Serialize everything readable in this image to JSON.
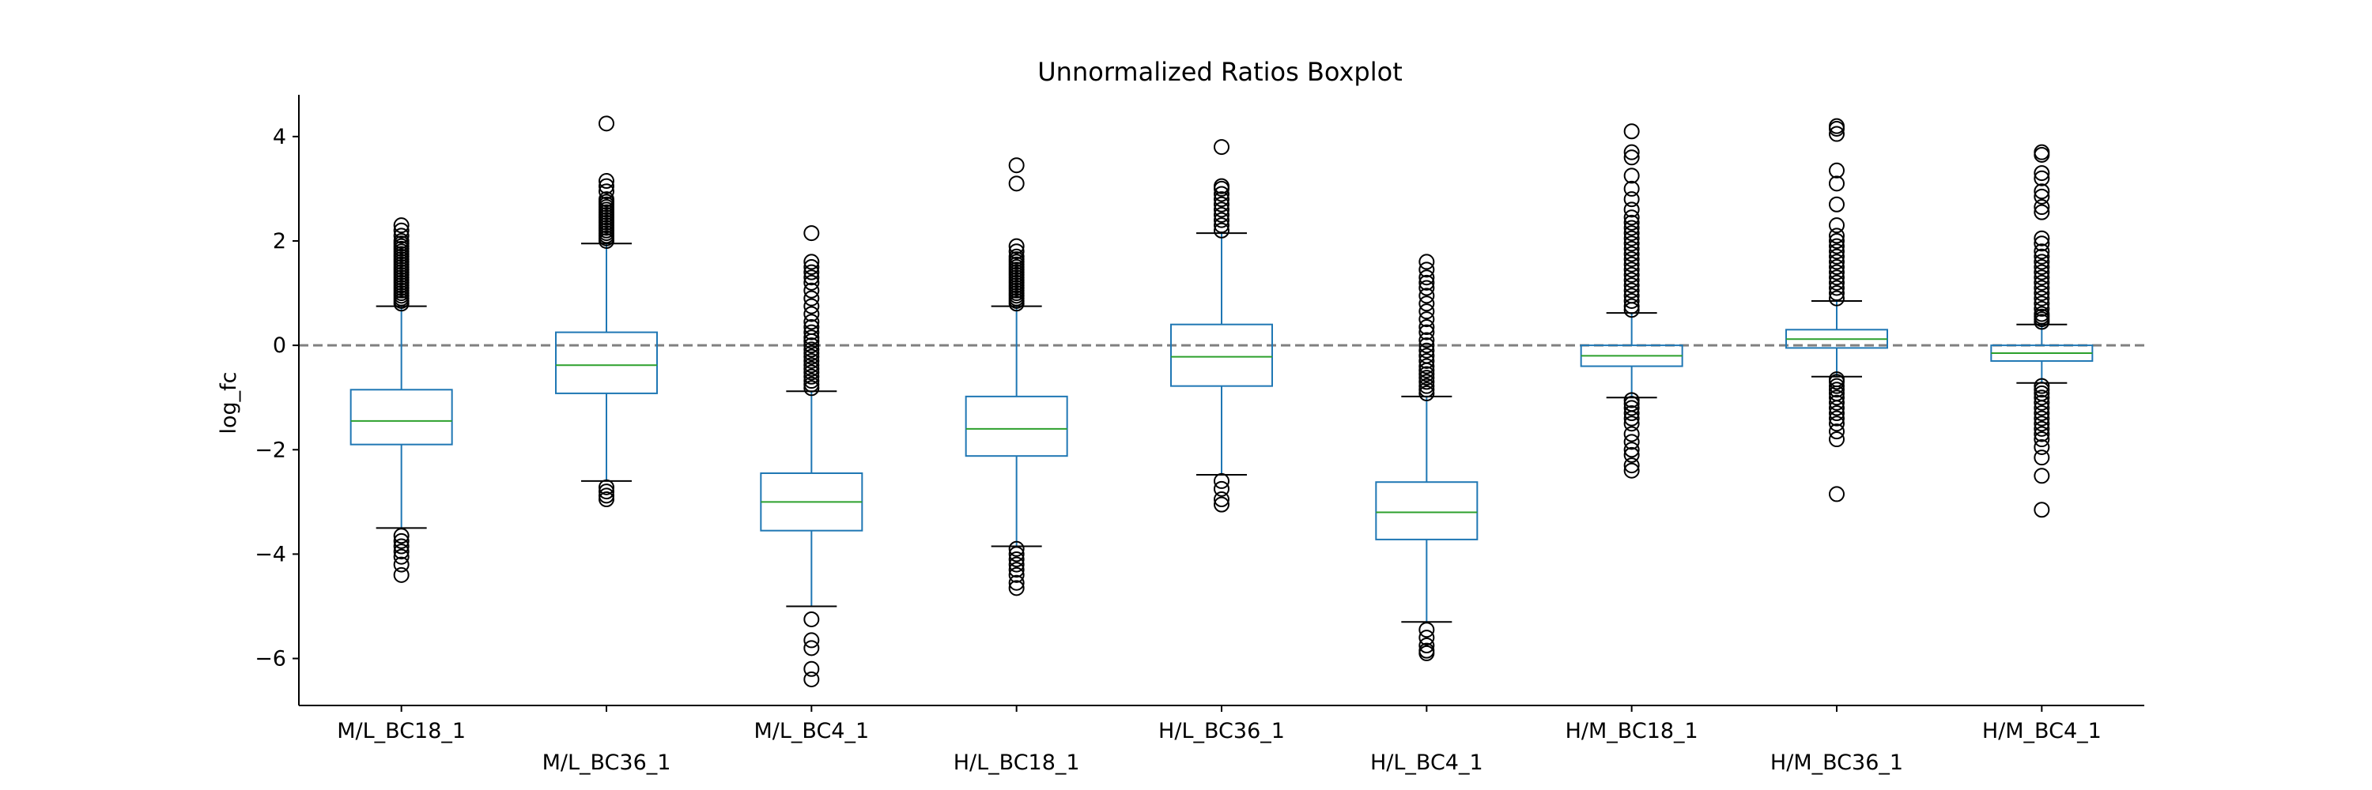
{
  "chart_data": {
    "type": "boxplot",
    "title": "Unnormalized Ratios Boxplot",
    "xlabel": "",
    "ylabel": "log_fc",
    "ylim": [
      -6.9,
      4.8
    ],
    "yticks": [
      -6,
      -4,
      -2,
      0,
      2,
      4
    ],
    "ytick_labels": [
      "−6",
      "−4",
      "−2",
      "0",
      "2",
      "4"
    ],
    "reference_line": {
      "y": 0,
      "style": "dashed",
      "color": "#808080"
    },
    "box_color": "#1f77b4",
    "median_color": "#2ca02c",
    "whisker_color": "#1f77b4",
    "cap_color": "#000000",
    "flier_color": "#000000",
    "grid": false,
    "categories": [
      "M/L_BC18_1",
      "M/L_BC36_1",
      "M/L_BC4_1",
      "H/L_BC18_1",
      "H/L_BC36_1",
      "H/L_BC4_1",
      "H/M_BC18_1",
      "H/M_BC36_1",
      "H/M_BC4_1"
    ],
    "boxes": [
      {
        "label": "M/L_BC18_1",
        "whislo": -3.5,
        "q1": -1.9,
        "med": -1.45,
        "q3": -0.85,
        "whishi": 0.75,
        "fliers": [
          0.8,
          0.85,
          0.9,
          0.95,
          1.0,
          1.05,
          1.1,
          1.15,
          1.2,
          1.25,
          1.3,
          1.35,
          1.4,
          1.45,
          1.5,
          1.55,
          1.6,
          1.65,
          1.7,
          1.75,
          1.8,
          1.85,
          1.9,
          1.95,
          2.0,
          2.1,
          2.2,
          2.3,
          -3.65,
          -3.75,
          -3.85,
          -3.95,
          -4.05,
          -4.2,
          -4.4
        ]
      },
      {
        "label": "M/L_BC36_1",
        "whislo": -2.6,
        "q1": -0.92,
        "med": -0.38,
        "q3": 0.25,
        "whishi": 1.95,
        "fliers": [
          2.0,
          2.05,
          2.1,
          2.15,
          2.2,
          2.25,
          2.3,
          2.35,
          2.4,
          2.45,
          2.5,
          2.55,
          2.6,
          2.65,
          2.7,
          2.75,
          2.8,
          2.95,
          3.05,
          3.15,
          4.25,
          -2.72,
          -2.8,
          -2.88,
          -2.95
        ]
      },
      {
        "label": "M/L_BC4_1",
        "whislo": -5.0,
        "q1": -3.55,
        "med": -3.0,
        "q3": -2.45,
        "whishi": -0.88,
        "fliers": [
          -0.82,
          -0.75,
          -0.68,
          -0.6,
          -0.52,
          -0.45,
          -0.38,
          -0.3,
          -0.22,
          -0.15,
          -0.08,
          0.0,
          0.08,
          0.15,
          0.25,
          0.35,
          0.45,
          0.6,
          0.75,
          0.9,
          1.05,
          1.2,
          1.3,
          1.4,
          1.5,
          1.6,
          2.15,
          -5.25,
          -5.65,
          -5.8,
          -6.2,
          -6.4
        ]
      },
      {
        "label": "H/L_BC18_1",
        "whislo": -3.85,
        "q1": -2.12,
        "med": -1.6,
        "q3": -0.98,
        "whishi": 0.75,
        "fliers": [
          0.8,
          0.85,
          0.9,
          0.95,
          1.0,
          1.05,
          1.1,
          1.15,
          1.2,
          1.25,
          1.3,
          1.35,
          1.4,
          1.45,
          1.5,
          1.55,
          1.6,
          1.65,
          1.7,
          1.8,
          1.9,
          3.1,
          3.45,
          -3.9,
          -4.0,
          -4.1,
          -4.2,
          -4.3,
          -4.4,
          -4.55,
          -4.65
        ]
      },
      {
        "label": "H/L_BC36_1",
        "whislo": -2.48,
        "q1": -0.78,
        "med": -0.22,
        "q3": 0.4,
        "whishi": 2.15,
        "fliers": [
          2.2,
          2.3,
          2.4,
          2.5,
          2.6,
          2.7,
          2.8,
          2.9,
          3.0,
          3.05,
          3.8,
          -2.6,
          -2.75,
          -2.95,
          -3.05
        ]
      },
      {
        "label": "H/L_BC4_1",
        "whislo": -5.3,
        "q1": -3.72,
        "med": -3.2,
        "q3": -2.62,
        "whishi": -0.98,
        "fliers": [
          -0.92,
          -0.85,
          -0.78,
          -0.7,
          -0.62,
          -0.55,
          -0.48,
          -0.4,
          -0.3,
          -0.2,
          -0.1,
          0.0,
          0.1,
          0.25,
          0.35,
          0.5,
          0.65,
          0.8,
          0.95,
          1.1,
          1.2,
          1.3,
          1.45,
          1.6,
          -5.45,
          -5.6,
          -5.75,
          -5.85,
          -5.9
        ]
      },
      {
        "label": "H/M_BC18_1",
        "whislo": -1.0,
        "q1": -0.4,
        "med": -0.2,
        "q3": 0.0,
        "whishi": 0.62,
        "fliers": [
          0.68,
          0.75,
          0.85,
          0.95,
          1.05,
          1.15,
          1.25,
          1.35,
          1.45,
          1.55,
          1.65,
          1.75,
          1.85,
          1.95,
          2.05,
          2.15,
          2.25,
          2.35,
          2.45,
          2.6,
          2.8,
          3.0,
          3.25,
          3.6,
          3.7,
          4.1,
          -1.05,
          -1.12,
          -1.2,
          -1.3,
          -1.4,
          -1.5,
          -1.7,
          -1.85,
          -2.0,
          -2.1,
          -2.3,
          -2.4
        ]
      },
      {
        "label": "H/M_BC36_1",
        "whislo": -0.6,
        "q1": -0.05,
        "med": 0.12,
        "q3": 0.3,
        "whishi": 0.85,
        "fliers": [
          0.9,
          1.0,
          1.1,
          1.2,
          1.3,
          1.4,
          1.5,
          1.6,
          1.7,
          1.8,
          1.9,
          2.0,
          2.1,
          2.3,
          2.7,
          3.1,
          3.35,
          4.05,
          4.15,
          4.2,
          -0.65,
          -0.7,
          -0.78,
          -0.85,
          -0.92,
          -1.0,
          -1.1,
          -1.2,
          -1.3,
          -1.4,
          -1.5,
          -1.65,
          -1.8,
          -2.85
        ]
      },
      {
        "label": "H/M_BC4_1",
        "whislo": -0.72,
        "q1": -0.3,
        "med": -0.15,
        "q3": 0.0,
        "whishi": 0.4,
        "fliers": [
          0.45,
          0.5,
          0.55,
          0.6,
          0.7,
          0.8,
          0.9,
          1.0,
          1.1,
          1.2,
          1.3,
          1.4,
          1.5,
          1.6,
          1.7,
          1.8,
          1.95,
          2.05,
          2.55,
          2.65,
          2.85,
          2.95,
          3.2,
          3.3,
          3.65,
          3.7,
          -0.78,
          -0.85,
          -0.92,
          -1.0,
          -1.1,
          -1.2,
          -1.3,
          -1.4,
          -1.5,
          -1.6,
          -1.7,
          -1.8,
          -1.95,
          -2.15,
          -2.5,
          -3.15
        ]
      }
    ]
  }
}
